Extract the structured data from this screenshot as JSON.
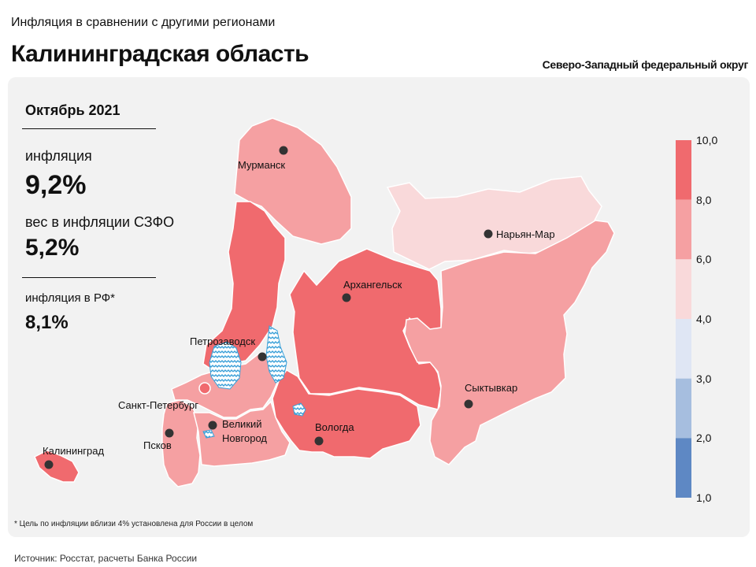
{
  "header": {
    "subtitle": "Инфляция в сравнении с другими регионами",
    "title": "Калининградская область",
    "district": "Северо-Западный федеральный округ"
  },
  "stats": {
    "period": "Октябрь 2021",
    "inflation_label": "инфляция",
    "inflation_value": "9,2%",
    "weight_label": "вес в инфляции  СЗФО",
    "weight_value": "5,2%",
    "rf_label": "инфляция  в РФ*",
    "rf_value": "8,1%"
  },
  "cities": {
    "murmansk": "Мурманск",
    "naryan_mar": "Нарьян-Мар",
    "arkhangelsk": "Архангельск",
    "petrozavodsk": "Петрозаводск",
    "spb": "Санкт-Петербург",
    "novgorod_1": "Великий",
    "novgorod_2": "Новгород",
    "pskov": "Псков",
    "vologda": "Вологда",
    "syktyvkar": "Сыктывкар",
    "kaliningrad": "Калининград"
  },
  "legend": {
    "ticks": [
      "10,0",
      "8,0",
      "6,0",
      "4,0",
      "3,0",
      "2,0",
      "1,0"
    ],
    "colors": [
      "#f06a6e",
      "#f5a0a2",
      "#f9d9da",
      "#dfe6f4",
      "#a6bedf",
      "#5e88c4"
    ]
  },
  "colors": {
    "high": "#f06a6e",
    "mid": "#f5a0a2",
    "low": "#f9d9da",
    "water": "#3aa0d8"
  },
  "footnote": "* Цель по инфляции вблизи 4% установлена для России в целом",
  "source": "Источник: Росстат, расчеты Банка России"
}
